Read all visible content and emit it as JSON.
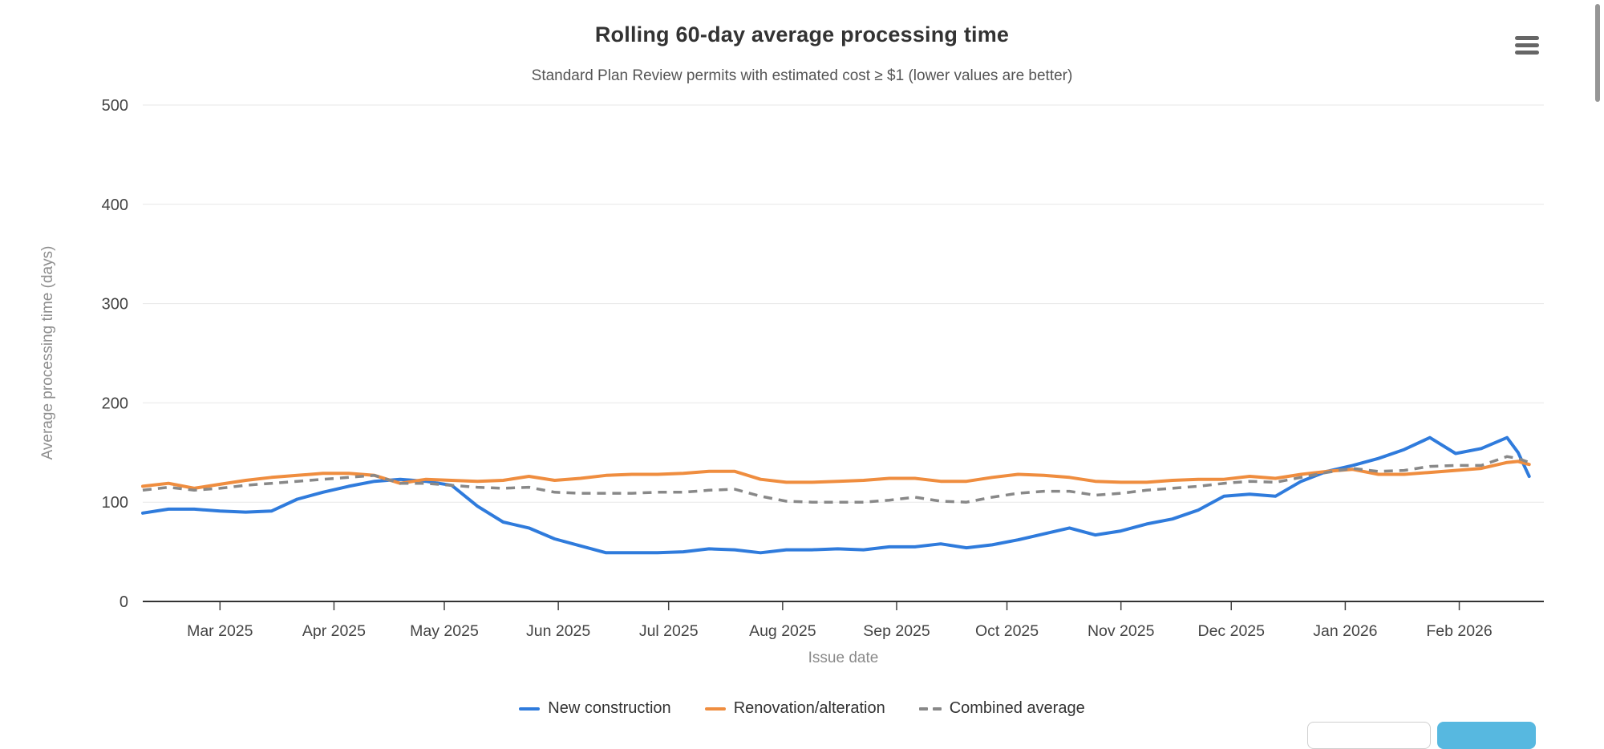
{
  "header": {
    "menu_icon": "hamburger-icon"
  },
  "chart_data": {
    "type": "line",
    "title": "Rolling 60-day average processing time",
    "subtitle": "Standard Plan Review permits with estimated cost ≥ $1 (lower values are better)",
    "xlabel": "Issue date",
    "ylabel": "Average processing time (days)",
    "ylim": [
      0,
      500
    ],
    "yticks": [
      0,
      100,
      200,
      300,
      400,
      500
    ],
    "grid": true,
    "legend_position": "bottom-center",
    "x_domain": [
      "2025-02-08",
      "2026-02-24"
    ],
    "xticks": [
      {
        "date": "2025-03-01",
        "label": "Mar 2025"
      },
      {
        "date": "2025-04-01",
        "label": "Apr 2025"
      },
      {
        "date": "2025-05-01",
        "label": "May 2025"
      },
      {
        "date": "2025-06-01",
        "label": "Jun 2025"
      },
      {
        "date": "2025-07-01",
        "label": "Jul 2025"
      },
      {
        "date": "2025-08-01",
        "label": "Aug 2025"
      },
      {
        "date": "2025-09-01",
        "label": "Sep 2025"
      },
      {
        "date": "2025-10-01",
        "label": "Oct 2025"
      },
      {
        "date": "2025-11-01",
        "label": "Nov 2025"
      },
      {
        "date": "2025-12-01",
        "label": "Dec 2025"
      },
      {
        "date": "2026-01-01",
        "label": "Jan 2026"
      },
      {
        "date": "2026-02-01",
        "label": "Feb 2026"
      }
    ],
    "x": [
      "2025-02-08",
      "2025-02-15",
      "2025-02-22",
      "2025-03-01",
      "2025-03-08",
      "2025-03-15",
      "2025-03-22",
      "2025-03-29",
      "2025-04-05",
      "2025-04-12",
      "2025-04-19",
      "2025-04-26",
      "2025-05-03",
      "2025-05-10",
      "2025-05-17",
      "2025-05-24",
      "2025-05-31",
      "2025-06-07",
      "2025-06-14",
      "2025-06-21",
      "2025-06-28",
      "2025-07-05",
      "2025-07-12",
      "2025-07-19",
      "2025-07-26",
      "2025-08-02",
      "2025-08-09",
      "2025-08-16",
      "2025-08-23",
      "2025-08-30",
      "2025-09-06",
      "2025-09-13",
      "2025-09-20",
      "2025-09-27",
      "2025-10-04",
      "2025-10-11",
      "2025-10-18",
      "2025-10-25",
      "2025-11-01",
      "2025-11-08",
      "2025-11-15",
      "2025-11-22",
      "2025-11-29",
      "2025-12-06",
      "2025-12-13",
      "2025-12-20",
      "2025-12-27",
      "2026-01-03",
      "2026-01-10",
      "2026-01-17",
      "2026-01-24",
      "2026-01-31",
      "2026-02-07",
      "2026-02-14",
      "2026-02-17",
      "2026-02-20"
    ],
    "series": [
      {
        "name": "New construction",
        "color": "#2f7bdc",
        "dash": "solid",
        "values": [
          89,
          93,
          93,
          91,
          90,
          91,
          103,
          110,
          116,
          121,
          123,
          121,
          117,
          96,
          80,
          74,
          63,
          56,
          49,
          49,
          49,
          50,
          53,
          52,
          49,
          52,
          52,
          53,
          52,
          55,
          55,
          58,
          54,
          57,
          62,
          68,
          74,
          67,
          71,
          78,
          83,
          92,
          106,
          108,
          106,
          121,
          131,
          137,
          144,
          153,
          165,
          149,
          154,
          165,
          150,
          126
        ]
      },
      {
        "name": "Renovation/alteration",
        "color": "#ef8d3f",
        "dash": "solid",
        "values": [
          116,
          119,
          114,
          118,
          122,
          125,
          127,
          129,
          129,
          127,
          119,
          123,
          122,
          121,
          122,
          126,
          122,
          124,
          127,
          128,
          128,
          129,
          131,
          131,
          123,
          120,
          120,
          121,
          122,
          124,
          124,
          121,
          121,
          125,
          128,
          127,
          125,
          121,
          120,
          120,
          122,
          123,
          123,
          126,
          124,
          128,
          131,
          133,
          128,
          128,
          130,
          132,
          134,
          140,
          141,
          138
        ]
      },
      {
        "name": "Combined average",
        "color": "#888888",
        "dash": "dashed",
        "values": [
          112,
          115,
          112,
          114,
          117,
          119,
          121,
          123,
          125,
          127,
          119,
          119,
          117,
          115,
          114,
          115,
          110,
          109,
          109,
          109,
          110,
          110,
          112,
          113,
          106,
          101,
          100,
          100,
          100,
          102,
          105,
          101,
          100,
          105,
          109,
          111,
          111,
          107,
          109,
          112,
          114,
          116,
          119,
          121,
          120,
          125,
          130,
          134,
          131,
          132,
          136,
          137,
          137,
          146,
          144,
          140
        ]
      }
    ],
    "style": {
      "grid_color": "#e7e7e7",
      "axis_line_color": "#333333",
      "tick_color": "#444444",
      "tick_label_color": "#444444"
    }
  },
  "footer": {
    "input_value": "",
    "button_color": "#57b8e0"
  },
  "icons": {
    "context_menu": "hamburger-icon"
  }
}
